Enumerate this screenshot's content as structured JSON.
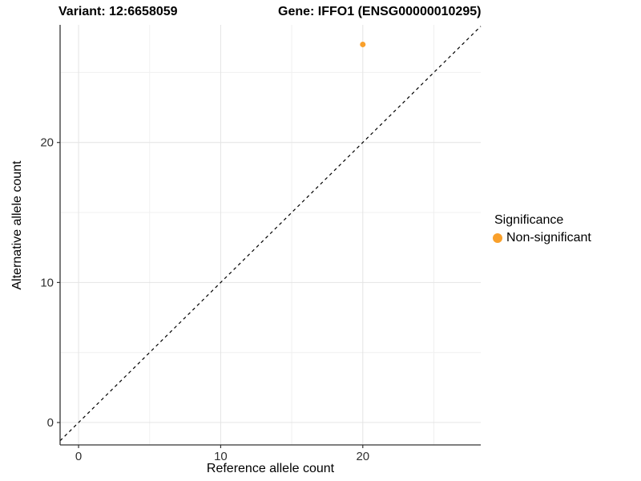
{
  "titles": {
    "variant": "Variant: 12:6658059",
    "gene": "Gene: IFFO1 (ENSG00000010295)"
  },
  "chart_data": {
    "type": "scatter",
    "xlabel": "Reference allele count",
    "ylabel": "Alternative allele count",
    "xlim": [
      -1.3,
      28.3
    ],
    "ylim": [
      -1.6,
      28.4
    ],
    "x_major_ticks": [
      0,
      10,
      20
    ],
    "y_major_ticks": [
      0,
      10,
      20
    ],
    "x_minor_ticks": [
      5,
      15,
      25
    ],
    "y_minor_ticks": [
      5,
      15,
      25
    ],
    "grid": true,
    "identity_line": {
      "slope": 1,
      "intercept": 0,
      "style": "dashed",
      "color": "#000000"
    },
    "series": [
      {
        "name": "Non-significant",
        "color": "#F9A02B",
        "points": [
          {
            "x": 20,
            "y": 27
          }
        ]
      }
    ],
    "legend": {
      "title": "Significance",
      "position": "right",
      "entries": [
        {
          "label": "Non-significant",
          "color": "#F9A02B"
        }
      ]
    }
  },
  "colors": {
    "background": "#FFFFFF",
    "grid_major": "#E4E4E4",
    "grid_minor": "#F0F0F0",
    "axis_line": "#333333",
    "tick_text": "#303030",
    "point": "#F9A02B"
  }
}
